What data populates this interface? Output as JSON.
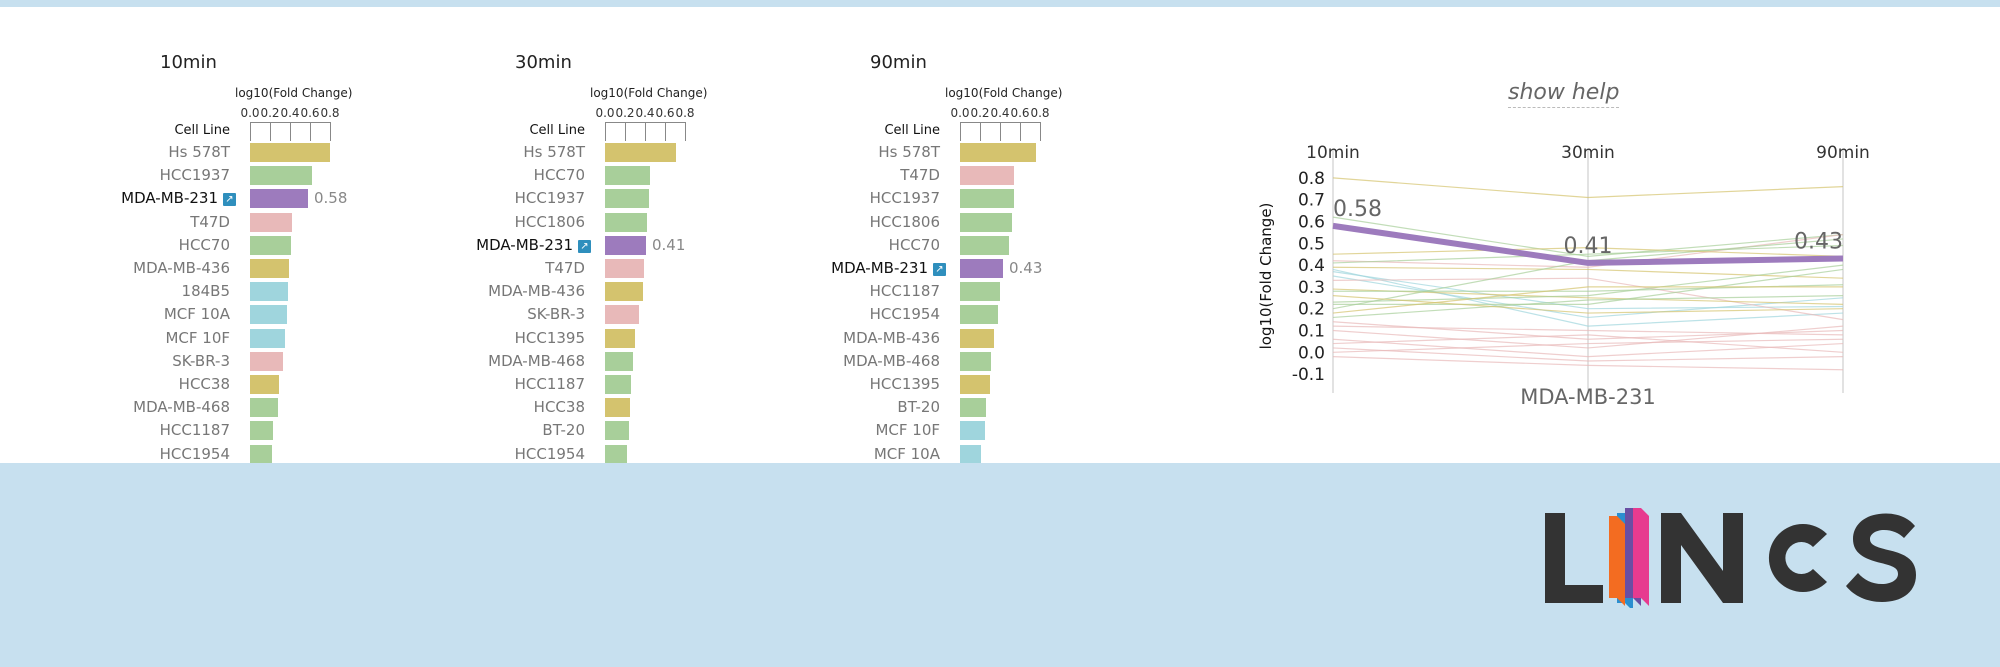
{
  "help_link": "show help",
  "panels": [
    {
      "title": "10min",
      "axis_label": "log10(Fold Change)",
      "ticks": [
        "0.0",
        "0.2",
        "0.4",
        "0.6",
        "0.8"
      ],
      "column_header": "Cell Line",
      "rows": [
        {
          "label": "Hs 578T",
          "value": 0.8,
          "color": "#d4c36e"
        },
        {
          "label": "HCC1937",
          "value": 0.62,
          "color": "#a8cf9a"
        },
        {
          "label": "MDA-MB-231",
          "value": 0.58,
          "color": "#9d7bbd",
          "highlight": true,
          "value_label": "0.58"
        },
        {
          "label": "T47D",
          "value": 0.42,
          "color": "#e8b9b9"
        },
        {
          "label": "HCC70",
          "value": 0.41,
          "color": "#a8cf9a"
        },
        {
          "label": "MDA-MB-436",
          "value": 0.39,
          "color": "#d4c36e"
        },
        {
          "label": "184B5",
          "value": 0.38,
          "color": "#9fd5dd"
        },
        {
          "label": "MCF 10A",
          "value": 0.37,
          "color": "#9fd5dd"
        },
        {
          "label": "MCF 10F",
          "value": 0.35,
          "color": "#9fd5dd"
        },
        {
          "label": "SK-BR-3",
          "value": 0.33,
          "color": "#e8b9b9"
        },
        {
          "label": "HCC38",
          "value": 0.29,
          "color": "#d4c36e"
        },
        {
          "label": "MDA-MB-468",
          "value": 0.28,
          "color": "#a8cf9a"
        },
        {
          "label": "HCC1187",
          "value": 0.23,
          "color": "#a8cf9a"
        },
        {
          "label": "HCC1954",
          "value": 0.22,
          "color": "#a8cf9a"
        }
      ]
    },
    {
      "title": "30min",
      "axis_label": "log10(Fold Change)",
      "ticks": [
        "0.0",
        "0.2",
        "0.4",
        "0.6",
        "0.8"
      ],
      "column_header": "Cell Line",
      "rows": [
        {
          "label": "Hs 578T",
          "value": 0.71,
          "color": "#d4c36e"
        },
        {
          "label": "HCC70",
          "value": 0.45,
          "color": "#a8cf9a"
        },
        {
          "label": "HCC1937",
          "value": 0.44,
          "color": "#a8cf9a"
        },
        {
          "label": "HCC1806",
          "value": 0.42,
          "color": "#a8cf9a"
        },
        {
          "label": "MDA-MB-231",
          "value": 0.41,
          "color": "#9d7bbd",
          "highlight": true,
          "value_label": "0.41"
        },
        {
          "label": "T47D",
          "value": 0.39,
          "color": "#e8b9b9"
        },
        {
          "label": "MDA-MB-436",
          "value": 0.38,
          "color": "#d4c36e"
        },
        {
          "label": "SK-BR-3",
          "value": 0.34,
          "color": "#e8b9b9"
        },
        {
          "label": "HCC1395",
          "value": 0.3,
          "color": "#d4c36e"
        },
        {
          "label": "MDA-MB-468",
          "value": 0.28,
          "color": "#a8cf9a"
        },
        {
          "label": "HCC1187",
          "value": 0.26,
          "color": "#a8cf9a"
        },
        {
          "label": "HCC38",
          "value": 0.25,
          "color": "#d4c36e"
        },
        {
          "label": "BT-20",
          "value": 0.24,
          "color": "#a8cf9a"
        },
        {
          "label": "HCC1954",
          "value": 0.22,
          "color": "#a8cf9a"
        }
      ]
    },
    {
      "title": "90min",
      "axis_label": "log10(Fold Change)",
      "ticks": [
        "0.0",
        "0.2",
        "0.4",
        "0.6",
        "0.8"
      ],
      "column_header": "Cell Line",
      "rows": [
        {
          "label": "Hs 578T",
          "value": 0.76,
          "color": "#d4c36e"
        },
        {
          "label": "T47D",
          "value": 0.54,
          "color": "#e8b9b9"
        },
        {
          "label": "HCC1937",
          "value": 0.54,
          "color": "#a8cf9a"
        },
        {
          "label": "HCC1806",
          "value": 0.52,
          "color": "#a8cf9a"
        },
        {
          "label": "HCC70",
          "value": 0.49,
          "color": "#a8cf9a"
        },
        {
          "label": "MDA-MB-231",
          "value": 0.43,
          "color": "#9d7bbd",
          "highlight": true,
          "value_label": "0.43"
        },
        {
          "label": "HCC1187",
          "value": 0.4,
          "color": "#a8cf9a"
        },
        {
          "label": "HCC1954",
          "value": 0.38,
          "color": "#a8cf9a"
        },
        {
          "label": "MDA-MB-436",
          "value": 0.34,
          "color": "#d4c36e"
        },
        {
          "label": "MDA-MB-468",
          "value": 0.31,
          "color": "#a8cf9a"
        },
        {
          "label": "HCC1395",
          "value": 0.3,
          "color": "#d4c36e"
        },
        {
          "label": "BT-20",
          "value": 0.26,
          "color": "#a8cf9a"
        },
        {
          "label": "MCF 10F",
          "value": 0.25,
          "color": "#9fd5dd"
        },
        {
          "label": "MCF 10A",
          "value": 0.21,
          "color": "#9fd5dd"
        }
      ]
    }
  ],
  "chart_data": {
    "type": "line",
    "categories": [
      "10min",
      "30min",
      "90min"
    ],
    "ylabel": "log10(Fold Change)",
    "xlabel": "MDA-MB-231",
    "ylim": [
      -0.15,
      0.85
    ],
    "yticks": [
      "0.8",
      "0.7",
      "0.6",
      "0.5",
      "0.4",
      "0.3",
      "0.2",
      "0.1",
      "0.0",
      "-0.1"
    ],
    "highlight": {
      "values": [
        0.58,
        0.41,
        0.43
      ],
      "labels": [
        "0.58",
        "0.41",
        "0.43"
      ],
      "color": "#9d7bbd"
    },
    "background_series": [
      {
        "values": [
          0.8,
          0.71,
          0.76
        ],
        "color": "#d4c36e"
      },
      {
        "values": [
          0.62,
          0.44,
          0.54
        ],
        "color": "#a8cf9a"
      },
      {
        "values": [
          0.42,
          0.39,
          0.54
        ],
        "color": "#e8b9b9"
      },
      {
        "values": [
          0.41,
          0.45,
          0.49
        ],
        "color": "#a8cf9a"
      },
      {
        "values": [
          0.39,
          0.38,
          0.34
        ],
        "color": "#d4c36e"
      },
      {
        "values": [
          0.38,
          0.12,
          0.18
        ],
        "color": "#9fd5dd"
      },
      {
        "values": [
          0.37,
          0.2,
          0.21
        ],
        "color": "#9fd5dd"
      },
      {
        "values": [
          0.35,
          0.16,
          0.25
        ],
        "color": "#9fd5dd"
      },
      {
        "values": [
          0.33,
          0.34,
          0.15
        ],
        "color": "#e8b9b9"
      },
      {
        "values": [
          0.29,
          0.25,
          0.22
        ],
        "color": "#d4c36e"
      },
      {
        "values": [
          0.28,
          0.28,
          0.31
        ],
        "color": "#a8cf9a"
      },
      {
        "values": [
          0.23,
          0.26,
          0.4
        ],
        "color": "#a8cf9a"
      },
      {
        "values": [
          0.22,
          0.22,
          0.38
        ],
        "color": "#a8cf9a"
      },
      {
        "values": [
          0.2,
          0.42,
          0.52
        ],
        "color": "#a8cf9a"
      },
      {
        "values": [
          0.18,
          0.3,
          0.3
        ],
        "color": "#d4c36e"
      },
      {
        "values": [
          0.16,
          0.24,
          0.26
        ],
        "color": "#a8cf9a"
      },
      {
        "values": [
          0.14,
          0.06,
          0.1
        ],
        "color": "#e8b9b9"
      },
      {
        "values": [
          0.12,
          0.1,
          0.08
        ],
        "color": "#e8b9b9"
      },
      {
        "values": [
          0.1,
          0.02,
          0.12
        ],
        "color": "#e8b9b9"
      },
      {
        "values": [
          0.06,
          -0.02,
          0.04
        ],
        "color": "#e8b9b9"
      },
      {
        "values": [
          0.04,
          0.08,
          0.0
        ],
        "color": "#e8b9b9"
      },
      {
        "values": [
          0.02,
          -0.04,
          -0.02
        ],
        "color": "#e8b9b9"
      },
      {
        "values": [
          0.0,
          0.04,
          0.06
        ],
        "color": "#e8b9b9"
      },
      {
        "values": [
          -0.02,
          -0.06,
          -0.08
        ],
        "color": "#e8b9b9"
      },
      {
        "values": [
          0.45,
          0.48,
          0.44
        ],
        "color": "#d4c36e"
      },
      {
        "values": [
          0.26,
          0.18,
          0.2
        ],
        "color": "#d4c36e"
      }
    ]
  },
  "logo": {
    "text": "LINCS",
    "colors": [
      "#2a8fd0",
      "#e73b8f",
      "#f36c21",
      "#6a4ea3"
    ],
    "dark": "#333333"
  }
}
